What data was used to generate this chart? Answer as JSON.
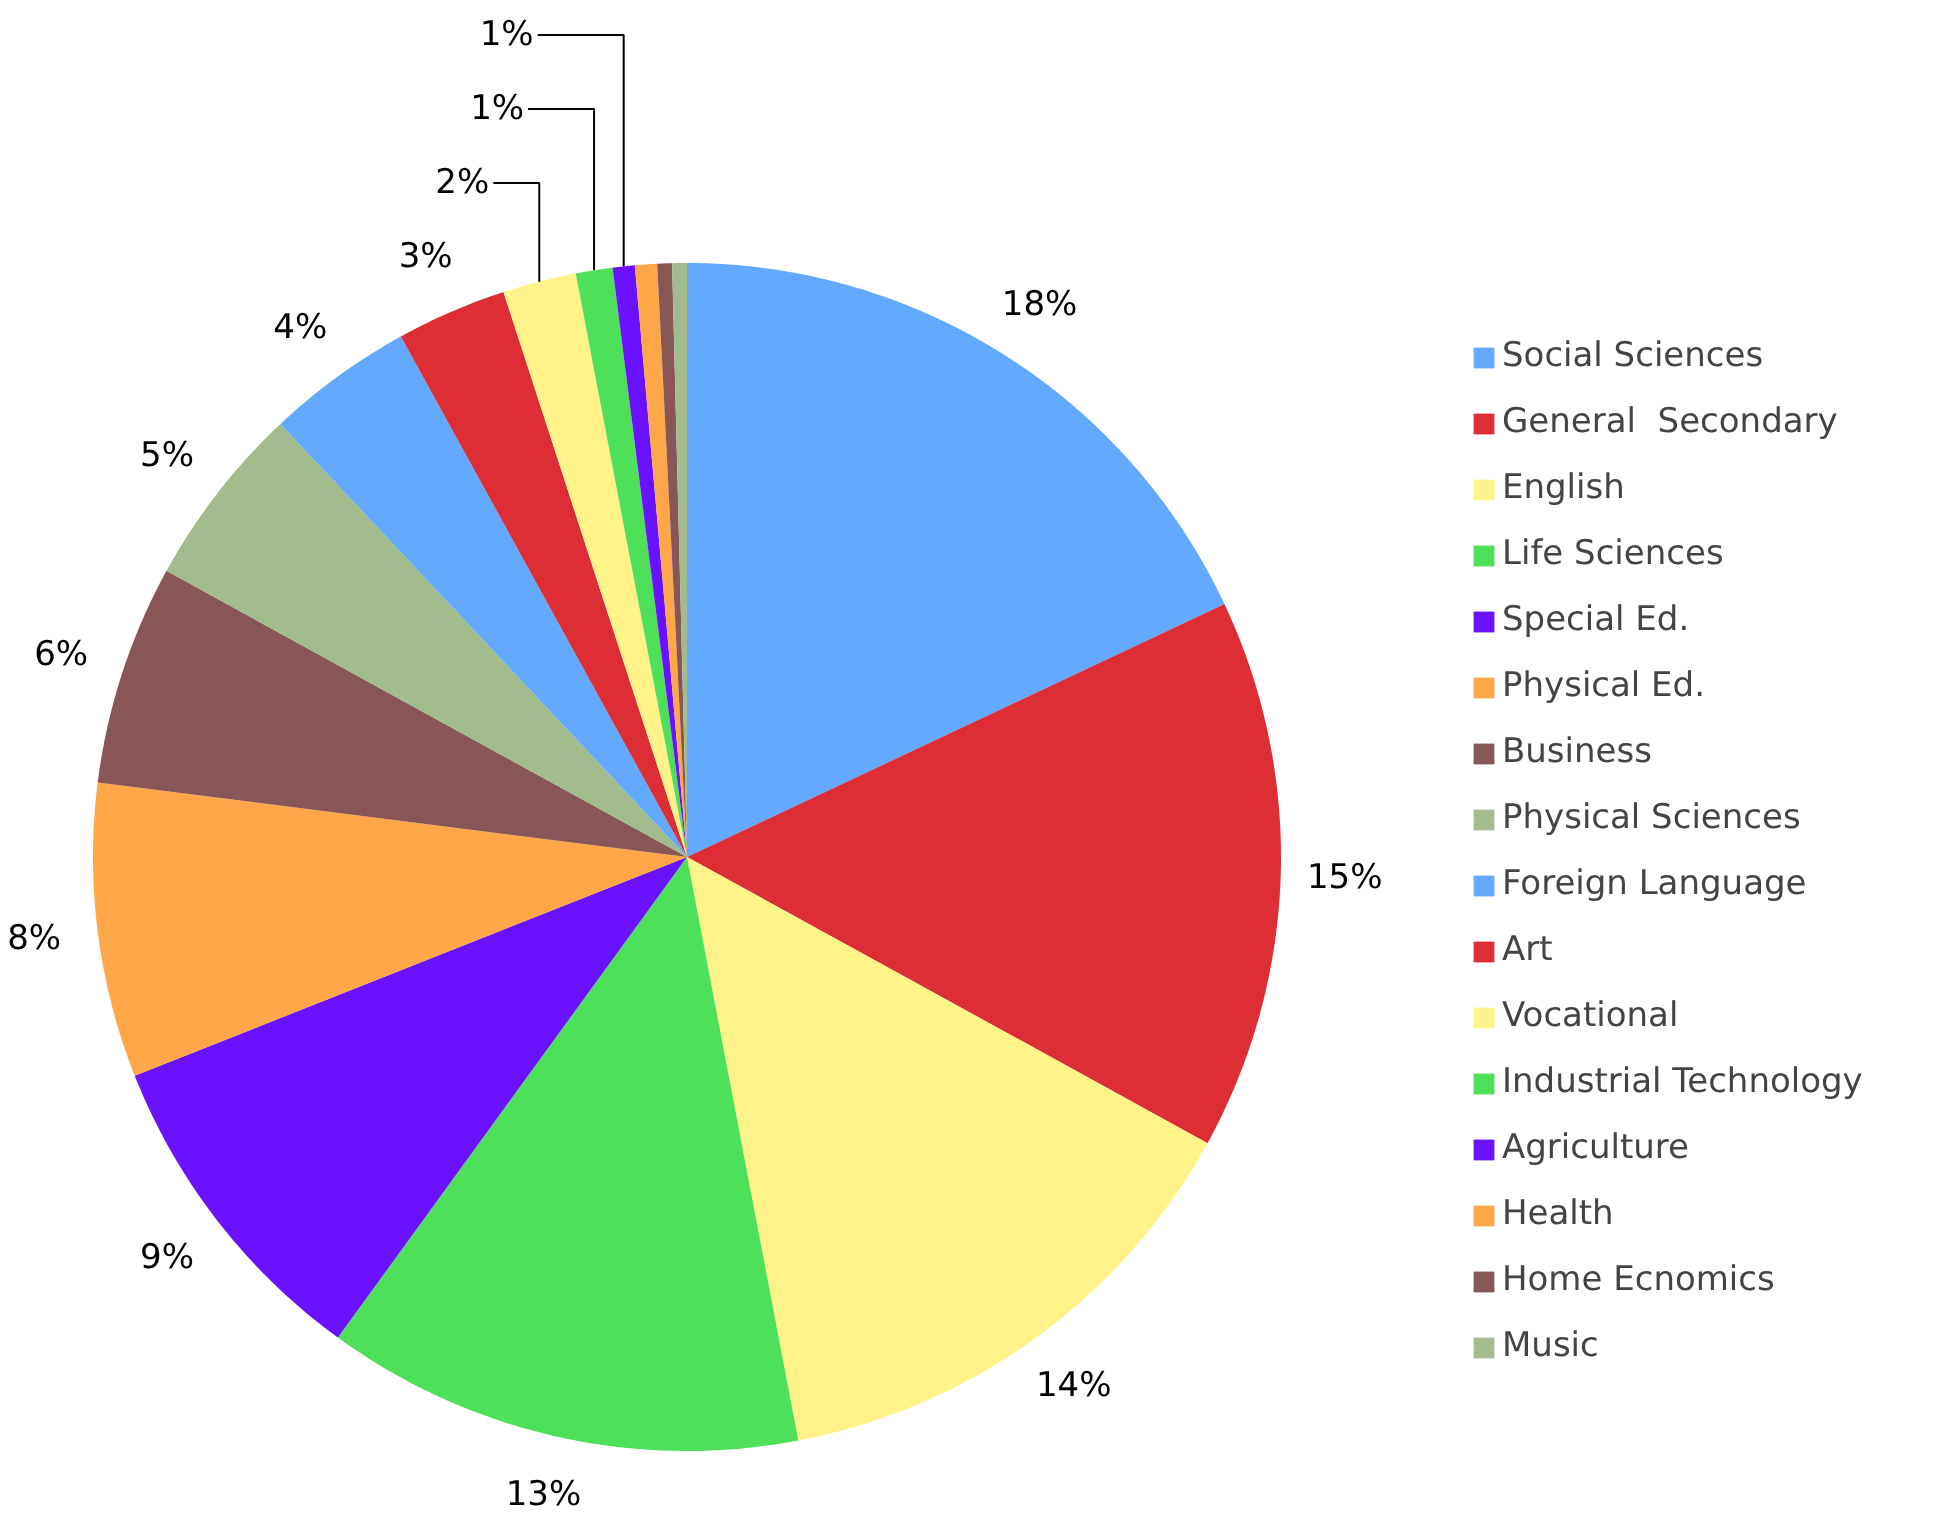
{
  "chart_data": {
    "type": "pie",
    "categories": [
      "Social Sciences",
      "General  Secondary",
      "English",
      "Life Sciences",
      "Special Ed.",
      "Physical Ed.",
      "Business",
      "Physical Sciences",
      "Foreign Language",
      "Art",
      "Vocational",
      "Industrial Technology",
      "Agriculture",
      "Health",
      "Home Ecnomics",
      "Music"
    ],
    "values": [
      18,
      15,
      14,
      13,
      9,
      8,
      6,
      5,
      4,
      3,
      2,
      1,
      0.6,
      0.6,
      0.4,
      0.4
    ],
    "value_labels": [
      "18%",
      "15%",
      "14%",
      "13%",
      "9%",
      "8%",
      "6%",
      "5%",
      "4%",
      "3%",
      "2%",
      "1%",
      "1%",
      null,
      null,
      null
    ],
    "colors": [
      "#62a9ff",
      "#dd2d35",
      "#fff38a",
      "#4ee058",
      "#6a12ff",
      "#ffa648",
      "#885656",
      "#a2bc8e",
      "#62a9ff",
      "#dd2d35",
      "#fff38a",
      "#4ee058",
      "#6a12ff",
      "#ffa648",
      "#885656",
      "#a2bc8e"
    ],
    "legend": "right"
  }
}
